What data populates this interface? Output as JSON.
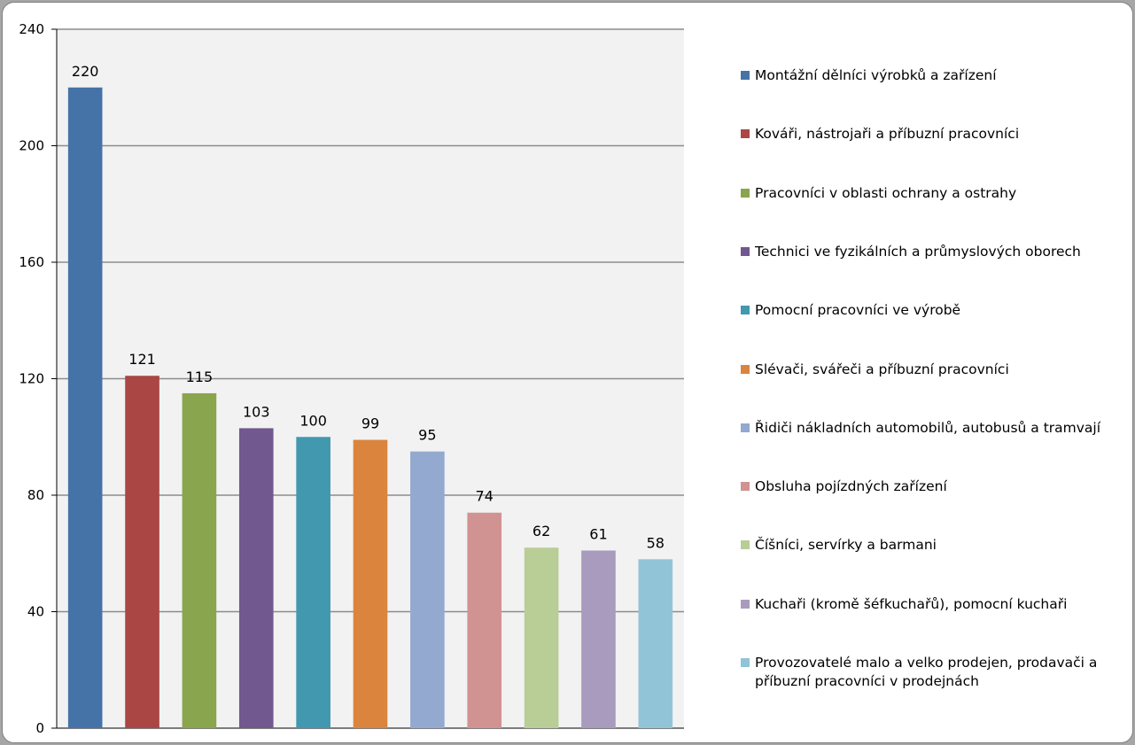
{
  "chart_data": {
    "type": "bar",
    "title": "",
    "xlabel": "",
    "ylabel": "",
    "ylim": [
      0,
      240
    ],
    "yticks": [
      0,
      40,
      80,
      120,
      160,
      200,
      240
    ],
    "grid": true,
    "legend_position": "right",
    "categories": [
      "Montážní dělníci výrobků a zařízení",
      "Kováři, nástrojaři a příbuzní pracovníci",
      "Pracovníci v oblasti ochrany a ostrahy",
      "Technici ve fyzikálních a průmyslových oborech",
      "Pomocní pracovníci ve výrobě",
      "Slévači, svářeči a příbuzní pracovníci",
      "Řidiči nákladních automobilů, autobusů a tramvají",
      "Obsluha pojízdných zařízení",
      "Číšníci, servírky a barmani",
      "Kuchaři (kromě šéfkuchařů), pomocní kuchaři",
      "Provozovatelé malo a velko prodejen, prodavači a příbuzní pracovníci v prodejnách"
    ],
    "values": [
      220,
      121,
      115,
      103,
      100,
      99,
      95,
      74,
      62,
      61,
      58
    ],
    "colors": [
      "#4573a7",
      "#aa4644",
      "#89a54e",
      "#71588f",
      "#4298af",
      "#db843d",
      "#93a9cf",
      "#d19392",
      "#b9cd96",
      "#a99bbd",
      "#92c4d8"
    ]
  }
}
